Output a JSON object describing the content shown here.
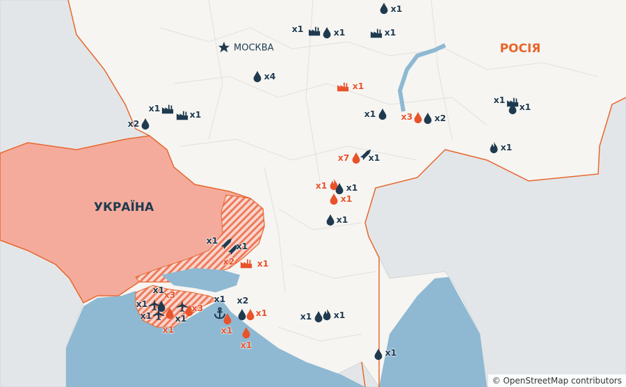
{
  "map": {
    "countries": [
      {
        "name": "РОСІЯ",
        "color": "#e8662c"
      },
      {
        "name": "УКРАЇНА",
        "color": "#1f3a4f"
      }
    ],
    "capital": {
      "name": "МОСКВА",
      "icon": "star-icon"
    },
    "attribution": "© OpenStreetMap contributors",
    "colors": {
      "dark": "#1f3a4f",
      "red": "#e8532a",
      "ukraine": "#f4ab9c",
      "border": "#e8662c",
      "sea": "#8fb9d2",
      "land": "#f6f5f2",
      "neighbours": "#e3e6e8"
    }
  },
  "markers": [
    {
      "type": "icon",
      "icon": "oil-drop",
      "tone": "dark"
    },
    {
      "type": "label",
      "text": "x1",
      "tone": "dark"
    },
    {
      "type": "label",
      "text": "x1",
      "tone": "dark"
    },
    {
      "type": "icon",
      "icon": "factory",
      "tone": "dark"
    },
    {
      "type": "icon",
      "icon": "oil-drop",
      "tone": "dark"
    },
    {
      "type": "label",
      "text": "x1",
      "tone": "dark"
    },
    {
      "type": "icon",
      "icon": "factory",
      "tone": "dark"
    },
    {
      "type": "label",
      "text": "x1",
      "tone": "dark"
    },
    {
      "type": "icon",
      "icon": "oil-drop",
      "tone": "dark"
    },
    {
      "type": "label",
      "text": "x4",
      "tone": "dark"
    },
    {
      "type": "icon",
      "icon": "factory",
      "tone": "red"
    },
    {
      "type": "label",
      "text": "x1",
      "tone": "red"
    },
    {
      "type": "label",
      "text": "x1",
      "tone": "dark"
    },
    {
      "type": "icon",
      "icon": "factory",
      "tone": "dark"
    },
    {
      "type": "icon",
      "icon": "factory",
      "tone": "dark"
    },
    {
      "type": "label",
      "text": "x1",
      "tone": "dark"
    },
    {
      "type": "label",
      "text": "x2",
      "tone": "dark"
    },
    {
      "type": "icon",
      "icon": "oil-drop",
      "tone": "dark"
    },
    {
      "type": "label",
      "text": "x1",
      "tone": "dark"
    },
    {
      "type": "icon",
      "icon": "oil-drop",
      "tone": "dark"
    },
    {
      "type": "label",
      "text": "x3",
      "tone": "red"
    },
    {
      "type": "icon",
      "icon": "oil-drop",
      "tone": "red"
    },
    {
      "type": "icon",
      "icon": "oil-drop",
      "tone": "dark"
    },
    {
      "type": "label",
      "text": "x2",
      "tone": "dark"
    },
    {
      "type": "label",
      "text": "x1",
      "tone": "dark"
    },
    {
      "type": "icon",
      "icon": "factory",
      "tone": "dark"
    },
    {
      "type": "icon",
      "icon": "oil-drop",
      "tone": "dark"
    },
    {
      "type": "label",
      "text": "x1",
      "tone": "dark"
    },
    {
      "type": "icon",
      "icon": "fire",
      "tone": "dark"
    },
    {
      "type": "label",
      "text": "x1",
      "tone": "dark"
    },
    {
      "type": "label",
      "text": "x7",
      "tone": "red"
    },
    {
      "type": "icon",
      "icon": "oil-drop",
      "tone": "red"
    },
    {
      "type": "icon",
      "icon": "missile",
      "tone": "dark"
    },
    {
      "type": "label",
      "text": "x1",
      "tone": "dark"
    },
    {
      "type": "label",
      "text": "x1",
      "tone": "red"
    },
    {
      "type": "icon",
      "icon": "fire",
      "tone": "red"
    },
    {
      "type": "icon",
      "icon": "oil-drop",
      "tone": "dark"
    },
    {
      "type": "label",
      "text": "x1",
      "tone": "dark"
    },
    {
      "type": "icon",
      "icon": "oil-drop",
      "tone": "red"
    },
    {
      "type": "label",
      "text": "x1",
      "tone": "red"
    },
    {
      "type": "icon",
      "icon": "oil-drop",
      "tone": "dark"
    },
    {
      "type": "label",
      "text": "x1",
      "tone": "dark"
    },
    {
      "type": "label",
      "text": "x1",
      "tone": "dark"
    },
    {
      "type": "icon",
      "icon": "missile",
      "tone": "dark"
    },
    {
      "type": "icon",
      "icon": "missile",
      "tone": "dark"
    },
    {
      "type": "label",
      "text": "x1",
      "tone": "dark"
    },
    {
      "type": "label",
      "text": "x2",
      "tone": "red"
    },
    {
      "type": "icon",
      "icon": "factory",
      "tone": "red"
    },
    {
      "type": "label",
      "text": "x1",
      "tone": "red"
    },
    {
      "type": "label",
      "text": "x1",
      "tone": "dark"
    },
    {
      "type": "label",
      "text": "x3",
      "tone": "red"
    },
    {
      "type": "label",
      "text": "x1",
      "tone": "dark"
    },
    {
      "type": "icon",
      "icon": "plane",
      "tone": "dark"
    },
    {
      "type": "icon",
      "icon": "oil-drop",
      "tone": "dark"
    },
    {
      "type": "icon",
      "icon": "plane",
      "tone": "dark"
    },
    {
      "type": "icon",
      "icon": "oil-drop",
      "tone": "red"
    },
    {
      "type": "icon",
      "icon": "oil-drop",
      "tone": "red"
    },
    {
      "type": "label",
      "text": "x3",
      "tone": "red"
    },
    {
      "type": "label",
      "text": "x1",
      "tone": "dark"
    },
    {
      "type": "icon",
      "icon": "plane",
      "tone": "dark"
    },
    {
      "type": "label",
      "text": "x1",
      "tone": "dark"
    },
    {
      "type": "label",
      "text": "x1",
      "tone": "red"
    },
    {
      "type": "label",
      "text": "x1",
      "tone": "dark"
    },
    {
      "type": "icon",
      "icon": "anchor",
      "tone": "dark"
    },
    {
      "type": "icon",
      "icon": "oil-drop",
      "tone": "red"
    },
    {
      "type": "label",
      "text": "x1",
      "tone": "red"
    },
    {
      "type": "label",
      "text": "x2",
      "tone": "dark"
    },
    {
      "type": "icon",
      "icon": "oil-drop",
      "tone": "dark"
    },
    {
      "type": "icon",
      "icon": "oil-drop",
      "tone": "red"
    },
    {
      "type": "label",
      "text": "x1",
      "tone": "red"
    },
    {
      "type": "icon",
      "icon": "oil-drop",
      "tone": "red"
    },
    {
      "type": "label",
      "text": "x1",
      "tone": "red"
    },
    {
      "type": "label",
      "text": "x1",
      "tone": "dark"
    },
    {
      "type": "icon",
      "icon": "oil-drop",
      "tone": "dark"
    },
    {
      "type": "icon",
      "icon": "fire",
      "tone": "dark"
    },
    {
      "type": "label",
      "text": "x1",
      "tone": "dark"
    },
    {
      "type": "icon",
      "icon": "oil-drop",
      "tone": "dark"
    },
    {
      "type": "label",
      "text": "x1",
      "tone": "dark"
    }
  ]
}
